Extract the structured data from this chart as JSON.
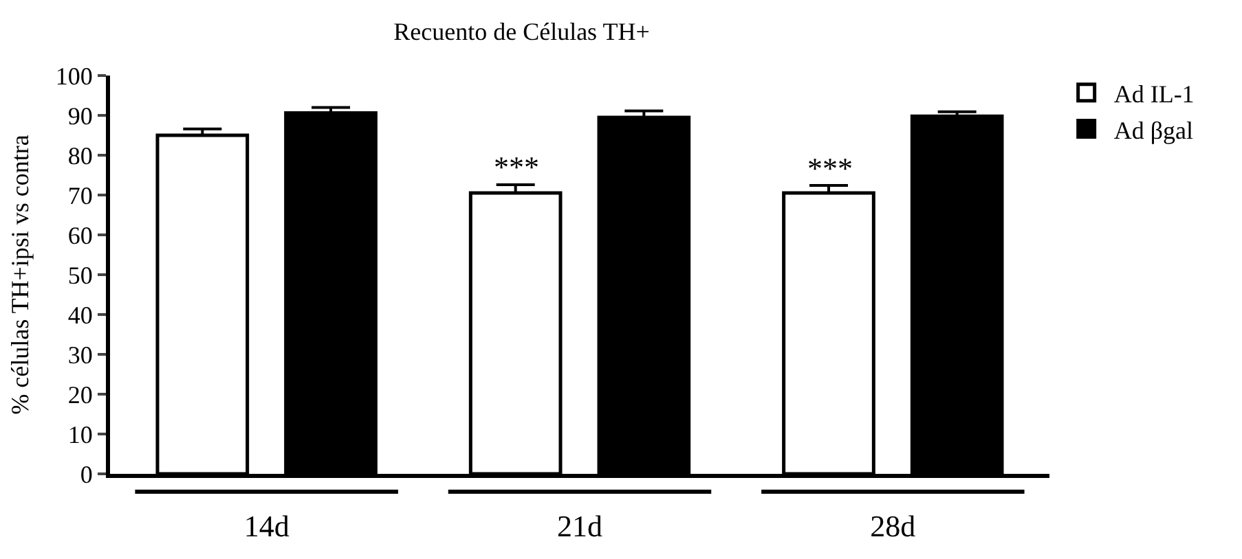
{
  "chart_data": {
    "type": "bar",
    "title": "Recuento de Células TH+",
    "ylabel": "% células TH+ipsi vs contra",
    "categories": [
      "14d",
      "21d",
      "28d"
    ],
    "series": [
      {
        "name": "Ad IL-1",
        "color": "#ffffff",
        "values": [
          85,
          70.5,
          70.5
        ],
        "errors": [
          [
            85,
            86.6
          ],
          [
            70.5,
            72.6
          ],
          [
            70.5,
            72.4
          ]
        ]
      },
      {
        "name": "Ad βgal",
        "color": "#000000",
        "values": [
          90.6,
          89.5,
          89.8
        ],
        "errors": [
          [
            90.6,
            92
          ],
          [
            89.5,
            91.1
          ],
          [
            89.8,
            90.9
          ]
        ]
      }
    ],
    "annotations": [
      "***",
      "***"
    ],
    "ylim": [
      0,
      100
    ],
    "yticks": [
      0,
      10,
      20,
      30,
      40,
      50,
      60,
      70,
      80,
      90,
      100
    ],
    "legend": "top right"
  }
}
